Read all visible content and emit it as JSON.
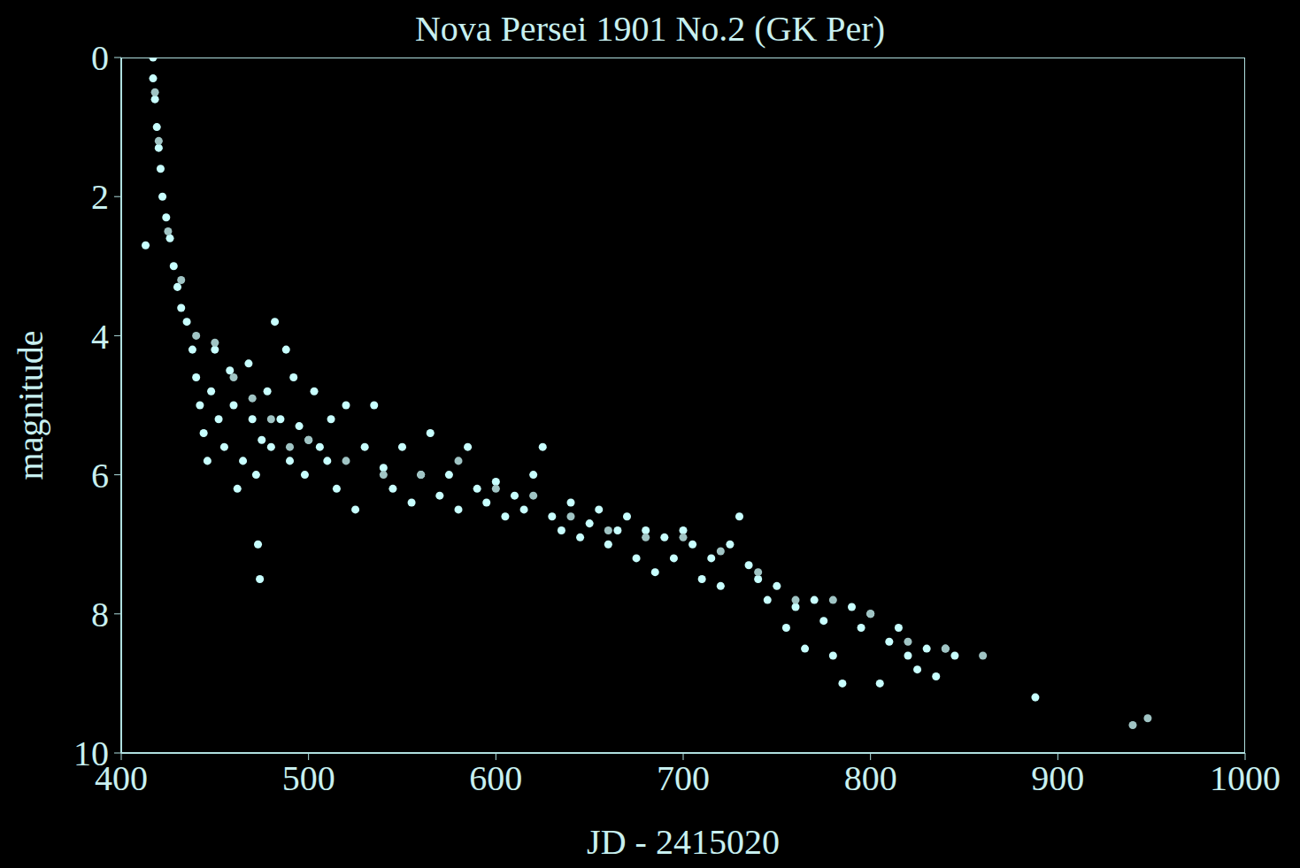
{
  "chart_data": {
    "type": "scatter",
    "title": "Nova Persei 1901 No.2 (GK Per)",
    "x_label": "JD - 2415020",
    "y_label": "magnitude",
    "xlim": [
      400,
      1000
    ],
    "xticks": [
      400,
      500,
      600,
      700,
      800,
      900,
      1000
    ],
    "ylim": [
      0,
      10
    ],
    "yticks": [
      0,
      2,
      4,
      6,
      8,
      10
    ],
    "y_reversed": true,
    "grid": false,
    "marker": "circle",
    "series": [
      {
        "color": "#c8ffff",
        "x": [
          417,
          417,
          418,
          419,
          420,
          421,
          422,
          424,
          426,
          428,
          430,
          432,
          435,
          438,
          440,
          442,
          444,
          446,
          448,
          450,
          452,
          455,
          458,
          460,
          462,
          465,
          468,
          470,
          472,
          475,
          478,
          480,
          482,
          485,
          488,
          490,
          492,
          495,
          498,
          500,
          503,
          506,
          510,
          512,
          515,
          520,
          525,
          530,
          535,
          540,
          545,
          550,
          555,
          560,
          565,
          570,
          575,
          580,
          585,
          590,
          595,
          600,
          605,
          610,
          615,
          620,
          625,
          630,
          635,
          640,
          645,
          650,
          655,
          660,
          665,
          670,
          675,
          680,
          685,
          690,
          695,
          700,
          705,
          710,
          715,
          720,
          725,
          730,
          735,
          740,
          745,
          750,
          755,
          760,
          765,
          770,
          775,
          780,
          785,
          790,
          795,
          800,
          805,
          810,
          815,
          820,
          825,
          830,
          835,
          840,
          845,
          888,
          473,
          474,
          413
        ],
        "values": [
          0.0,
          0.3,
          0.6,
          1.0,
          1.3,
          1.6,
          2.0,
          2.3,
          2.6,
          3.0,
          3.3,
          3.6,
          3.8,
          4.2,
          4.6,
          5.0,
          5.4,
          5.8,
          4.8,
          4.2,
          5.2,
          5.6,
          4.5,
          5.0,
          6.2,
          5.8,
          4.4,
          5.2,
          6.0,
          5.5,
          4.8,
          5.6,
          3.8,
          5.2,
          4.2,
          5.8,
          4.6,
          5.3,
          6.0,
          5.5,
          4.8,
          5.6,
          5.8,
          5.2,
          6.2,
          5.0,
          6.5,
          5.6,
          5.0,
          5.9,
          6.2,
          5.6,
          6.4,
          6.0,
          5.4,
          6.3,
          6.0,
          6.5,
          5.6,
          6.2,
          6.4,
          6.1,
          6.6,
          6.3,
          6.5,
          6.0,
          5.6,
          6.6,
          6.8,
          6.4,
          6.9,
          6.7,
          6.5,
          7.0,
          6.8,
          6.6,
          7.2,
          6.8,
          7.4,
          6.9,
          7.2,
          6.8,
          7.0,
          7.5,
          7.2,
          7.6,
          7.0,
          6.6,
          7.3,
          7.5,
          7.8,
          7.6,
          8.2,
          7.9,
          8.5,
          7.8,
          8.1,
          8.6,
          9.0,
          7.9,
          8.2,
          8.0,
          9.0,
          8.4,
          8.2,
          8.6,
          8.8,
          8.5,
          8.9,
          8.5,
          8.6,
          9.2,
          7.0,
          7.5,
          2.7
        ]
      },
      {
        "color": "#a0c4c4",
        "x": [
          418,
          420,
          425,
          432,
          440,
          450,
          460,
          470,
          480,
          490,
          500,
          520,
          540,
          560,
          580,
          600,
          620,
          640,
          660,
          680,
          700,
          720,
          740,
          760,
          780,
          800,
          820,
          840,
          860,
          940,
          948
        ],
        "values": [
          0.5,
          1.2,
          2.5,
          3.2,
          4.0,
          4.1,
          4.6,
          4.9,
          5.2,
          5.6,
          5.5,
          5.8,
          6.0,
          6.0,
          5.8,
          6.2,
          6.3,
          6.6,
          6.8,
          6.9,
          6.9,
          7.1,
          7.4,
          7.8,
          7.8,
          8.0,
          8.4,
          8.5,
          8.6,
          9.6,
          9.5
        ]
      }
    ]
  }
}
